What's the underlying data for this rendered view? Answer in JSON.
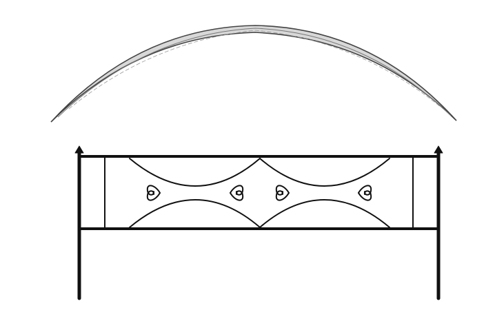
{
  "image": {
    "background_color": "#ffffff",
    "objects": [
      {
        "name": "curved-metal-arch",
        "color": "#444444",
        "highlight_color": "#d8d8d8"
      },
      {
        "name": "wrought-iron-fence-panel",
        "color": "#111111",
        "motifs": [
          "crossed-arcs",
          "s-scroll-curls",
          "finial-posts"
        ]
      }
    ]
  }
}
